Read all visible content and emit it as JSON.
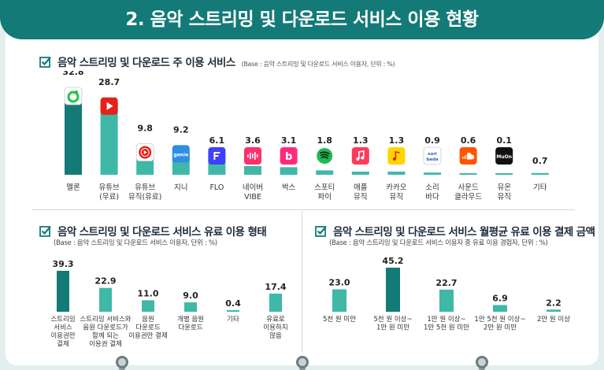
{
  "header": {
    "title": "2. 음악 스트리밍 및 다운로드 서비스 이용 현황"
  },
  "section1": {
    "title": "음악 스트리밍 및 다운로드 주 이용 서비스",
    "subtitle": "(Base : 음악 스트리밍 및 다운로드 서비스 이용자, 단위 : %)"
  },
  "section2": {
    "title": "음악 스트리밍 및 다운로드 서비스 유료 이용 형태",
    "base": "(Base : 음악 스트리밍 및 다운로드 서비스 이용자, 단위 : %)"
  },
  "section3": {
    "title": "음악 스트리밍 및 다운로드 서비스 월평균 유료 이용 결제 금액",
    "base": "(Base : 음악 스트리밍 및 다운로드 서비스 이용자 중 유료 이용 경험자, 단위 : %)"
  },
  "colors": {
    "primary": "#137a77",
    "secondary": "#3fb8a8",
    "background": "#e3eeee"
  },
  "chart_data": [
    {
      "type": "bar",
      "title": "음악 스트리밍 및 다운로드 주 이용 서비스",
      "subtitle": "(Base : 음악 스트리밍 및 다운로드 서비스 이용자, 단위 : %)",
      "categories": [
        [
          "멜론"
        ],
        [
          "유튜브",
          "(무료)"
        ],
        [
          "유튜브",
          "뮤직(유료)"
        ],
        [
          "지니"
        ],
        [
          "FLO"
        ],
        [
          "네이버",
          "VIBE"
        ],
        [
          "벅스"
        ],
        [
          "스포티",
          "파이"
        ],
        [
          "애플",
          "뮤직"
        ],
        [
          "카카오",
          "뮤직"
        ],
        [
          "소리",
          "바다"
        ],
        [
          "사운드",
          "클라우드"
        ],
        [
          "뮤온",
          "뮤직"
        ],
        [
          "기타"
        ]
      ],
      "values": [
        32.8,
        28.7,
        9.8,
        9.2,
        6.1,
        3.6,
        3.1,
        1.8,
        1.3,
        1.3,
        0.9,
        0.6,
        0.1,
        0.7
      ],
      "value_labels": [
        "32.8",
        "28.7",
        "9.8",
        "9.2",
        "6.1",
        "3.6",
        "3.1",
        "1.8",
        "1.3",
        "1.3",
        "0.9",
        "0.6",
        "0.1",
        "0.7"
      ],
      "icons": [
        "melon-icon",
        "youtube-icon",
        "youtube-music-icon",
        "genie-icon",
        "flo-icon",
        "naver-vibe-icon",
        "bugs-icon",
        "spotify-icon",
        "apple-music-icon",
        "kakao-music-icon",
        "soribada-icon",
        "soundcloud-icon",
        "muon-icon",
        ""
      ],
      "icon_texts": [
        "",
        "",
        "",
        "genie",
        "",
        "",
        "",
        "",
        "",
        "",
        "sori bada",
        "",
        "MuOn",
        ""
      ],
      "highlight": [
        true,
        false,
        false,
        false,
        false,
        false,
        false,
        false,
        false,
        false,
        false,
        false,
        false,
        false
      ]
    },
    {
      "type": "bar",
      "title": "음악 스트리밍 및 다운로드 서비스 유료 이용 형태",
      "subtitle": "(Base : 음악 스트리밍 및 다운로드 서비스 이용자, 단위 : %)",
      "categories": [
        [
          "스트리밍",
          "서비스",
          "이용권만",
          "결제"
        ],
        [
          "스트리밍 서비스와",
          "음원 다운로드가",
          "함께 되는",
          "이용권 결제"
        ],
        [
          "음원",
          "다운로드",
          "이용권만 결제"
        ],
        [
          "개별 음원",
          "다운로드"
        ],
        [
          "기타"
        ],
        [
          "유료로",
          "이용하지",
          "않음"
        ]
      ],
      "values": [
        39.3,
        22.9,
        11.0,
        9.0,
        0.4,
        17.4
      ],
      "value_labels": [
        "39.3",
        "22.9",
        "11.0",
        "9.0",
        "0.4",
        "17.4"
      ],
      "highlight": [
        true,
        false,
        false,
        false,
        false,
        false
      ]
    },
    {
      "type": "bar",
      "title": "음악 스트리밍 및 다운로드 서비스 월평균 유료 이용 결제 금액",
      "subtitle": "(Base : 음악 스트리밍 및 다운로드 서비스 이용자 중 유료 이용 경험자, 단위 : %)",
      "categories": [
        [
          "5천 원 미만"
        ],
        [
          "5천 원 이상~",
          "1만 원 미만"
        ],
        [
          "1만 원 이상~",
          "1만 5천 원 미만"
        ],
        [
          "1만 5천 원 이상~",
          "2만 원 미만"
        ],
        [
          "2만 원 이상"
        ]
      ],
      "values": [
        23.0,
        45.2,
        22.7,
        6.9,
        2.2
      ],
      "value_labels": [
        "23.0",
        "45.2",
        "22.7",
        "6.9",
        "2.2"
      ],
      "highlight": [
        false,
        true,
        false,
        false,
        false
      ]
    }
  ]
}
